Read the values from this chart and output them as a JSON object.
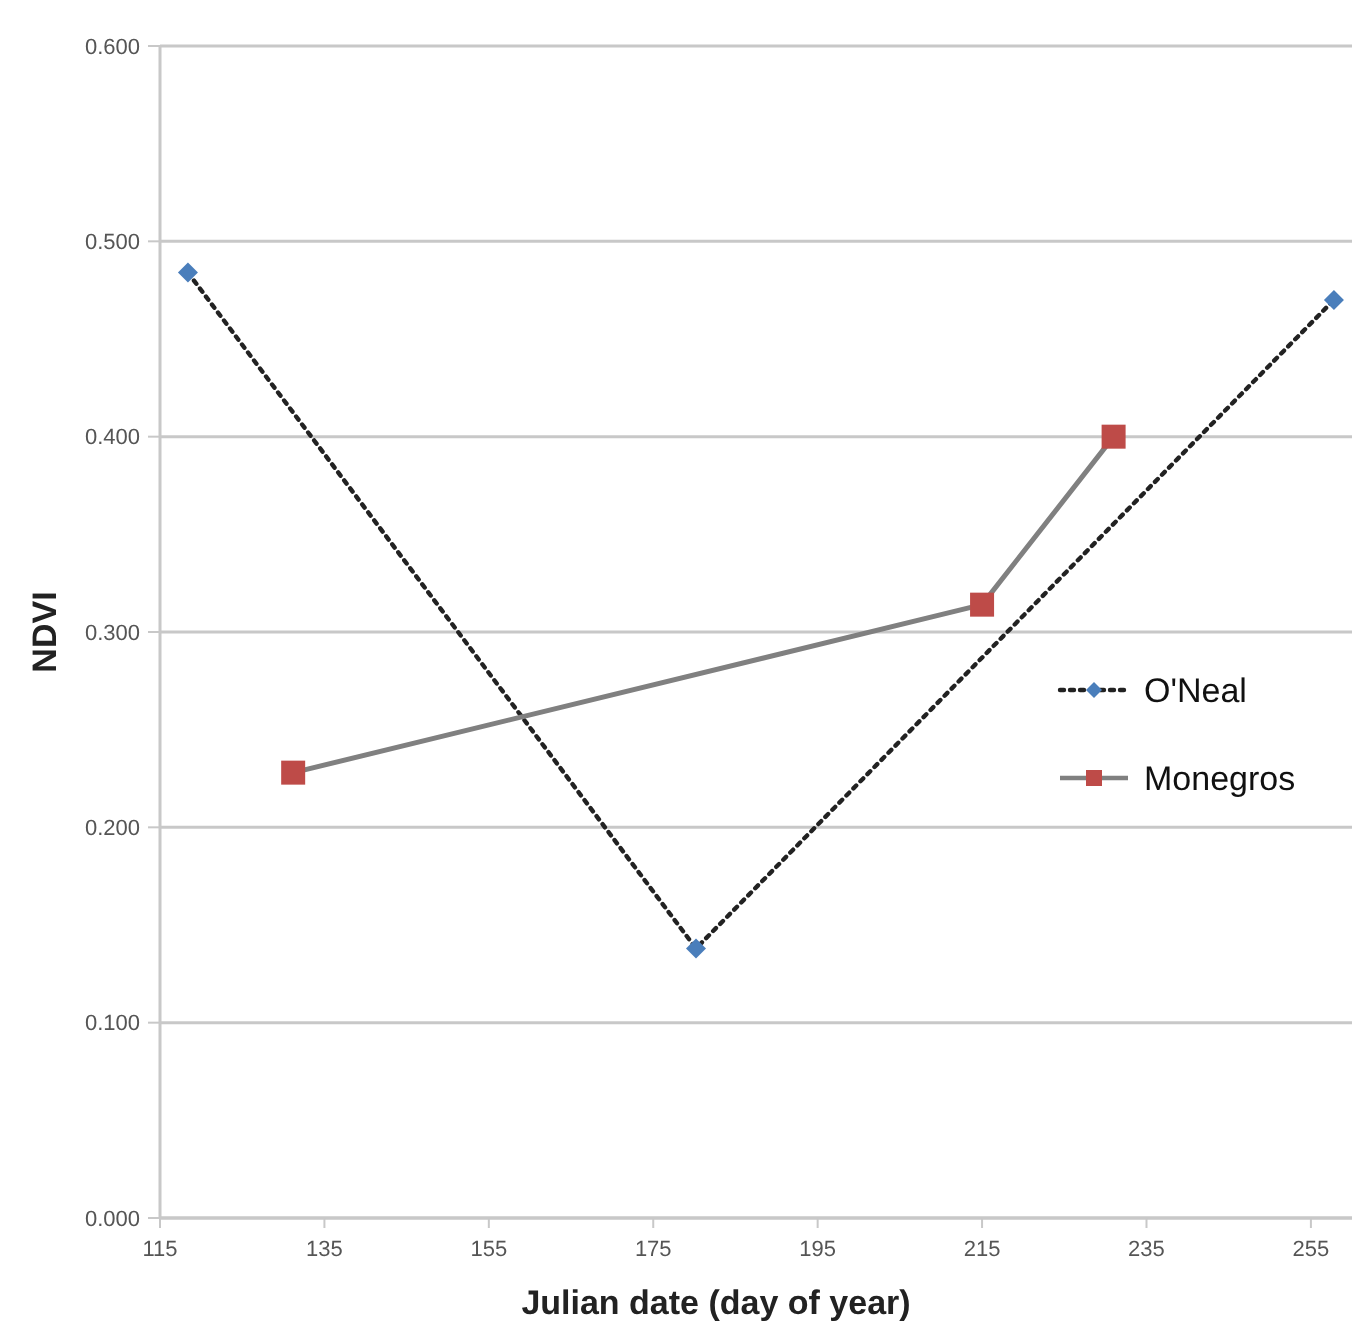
{
  "chart_data": {
    "type": "line",
    "xlabel": "Julian date (day of year)",
    "ylabel": "NDVI",
    "xlim": [
      115,
      260
    ],
    "xticks": [
      115,
      135,
      155,
      175,
      195,
      215,
      235,
      255
    ],
    "ylim": [
      0,
      0.6
    ],
    "yticks": [
      {
        "value": 0,
        "label": "0.000"
      },
      {
        "value": 0.1,
        "label": "0.100"
      },
      {
        "value": 0.2,
        "label": "0.200"
      },
      {
        "value": 0.3,
        "label": "0.300"
      },
      {
        "value": 0.4,
        "label": "0.400"
      },
      {
        "value": 0.5,
        "label": "0.500"
      },
      {
        "value": 0.6,
        "label": "0.600"
      }
    ],
    "grid": "y",
    "legend": "right",
    "series": [
      {
        "name": "O'Neal",
        "color": "#4a7ebb",
        "marker": "diamond",
        "line_style": "dotted",
        "x": [
          118.4,
          180.2,
          257.8
        ],
        "values": [
          0.484,
          0.138,
          0.47
        ]
      },
      {
        "name": "Monegros",
        "color": "#be4b48",
        "marker": "square",
        "line_style": "solid",
        "x": [
          131.2,
          215,
          231
        ],
        "values": [
          0.228,
          0.314,
          0.4
        ]
      }
    ]
  }
}
